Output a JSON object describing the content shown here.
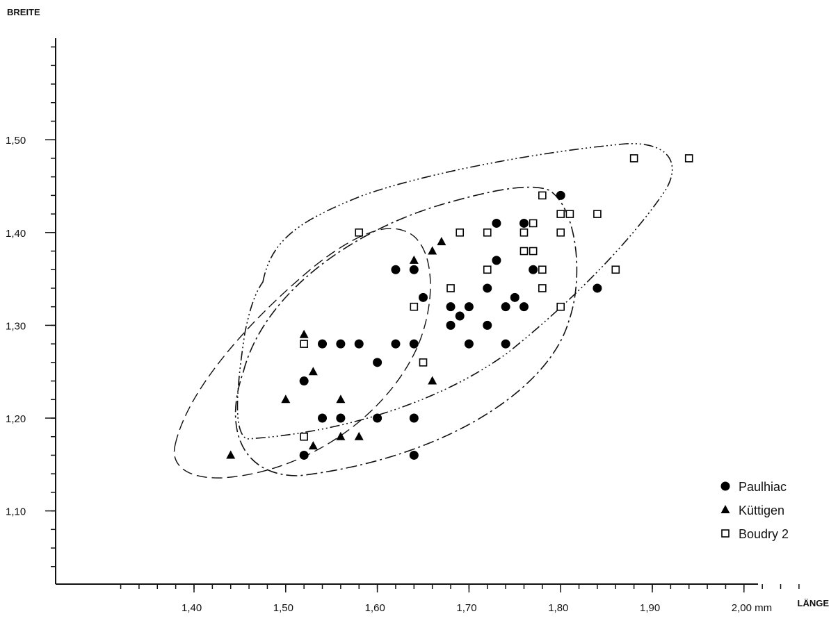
{
  "chart_data": {
    "type": "scatter",
    "title": "",
    "xlabel": "LÄNGE",
    "ylabel": "BREITE",
    "x_unit": "mm",
    "xlim": [
      1.31,
      2.06
    ],
    "ylim": [
      1.03,
      1.6
    ],
    "x_ticks": [
      1.4,
      1.5,
      1.6,
      1.7,
      1.8,
      1.9,
      2.0
    ],
    "x_tick_labels": [
      "1,40",
      "1,50",
      "1,60",
      "1,70",
      "1,80",
      "1,90",
      "2,00 mm"
    ],
    "y_ticks": [
      1.1,
      1.2,
      1.3,
      1.4,
      1.5
    ],
    "y_tick_labels": [
      "1,10",
      "1,20",
      "1,30",
      "1,40",
      "1,50"
    ],
    "grid": false,
    "legend_position": "bottom-right",
    "series": [
      {
        "name": "Paulhiac",
        "marker": "filled-circle",
        "color": "#000000",
        "envelope": "dash-dot",
        "points": [
          [
            1.52,
            1.16
          ],
          [
            1.52,
            1.24
          ],
          [
            1.54,
            1.2
          ],
          [
            1.54,
            1.28
          ],
          [
            1.56,
            1.2
          ],
          [
            1.56,
            1.28
          ],
          [
            1.58,
            1.28
          ],
          [
            1.6,
            1.26
          ],
          [
            1.6,
            1.2
          ],
          [
            1.62,
            1.28
          ],
          [
            1.62,
            1.36
          ],
          [
            1.64,
            1.36
          ],
          [
            1.64,
            1.28
          ],
          [
            1.64,
            1.2
          ],
          [
            1.64,
            1.16
          ],
          [
            1.65,
            1.33
          ],
          [
            1.68,
            1.32
          ],
          [
            1.68,
            1.3
          ],
          [
            1.69,
            1.31
          ],
          [
            1.7,
            1.32
          ],
          [
            1.7,
            1.28
          ],
          [
            1.72,
            1.34
          ],
          [
            1.72,
            1.3
          ],
          [
            1.73,
            1.37
          ],
          [
            1.73,
            1.41
          ],
          [
            1.74,
            1.32
          ],
          [
            1.74,
            1.28
          ],
          [
            1.75,
            1.33
          ],
          [
            1.76,
            1.41
          ],
          [
            1.76,
            1.32
          ],
          [
            1.77,
            1.36
          ],
          [
            1.8,
            1.44
          ],
          [
            1.84,
            1.34
          ]
        ]
      },
      {
        "name": "Küttigen",
        "marker": "filled-triangle",
        "color": "#000000",
        "envelope": "dashed",
        "points": [
          [
            1.44,
            1.16
          ],
          [
            1.5,
            1.22
          ],
          [
            1.52,
            1.29
          ],
          [
            1.53,
            1.25
          ],
          [
            1.53,
            1.17
          ],
          [
            1.56,
            1.22
          ],
          [
            1.56,
            1.18
          ],
          [
            1.58,
            1.18
          ],
          [
            1.64,
            1.37
          ],
          [
            1.66,
            1.38
          ],
          [
            1.67,
            1.39
          ],
          [
            1.66,
            1.24
          ]
        ]
      },
      {
        "name": "Boudry 2",
        "marker": "open-square",
        "color": "#000000",
        "envelope": "dash-dot-dot",
        "points": [
          [
            1.52,
            1.28
          ],
          [
            1.52,
            1.18
          ],
          [
            1.58,
            1.4
          ],
          [
            1.64,
            1.32
          ],
          [
            1.65,
            1.26
          ],
          [
            1.68,
            1.34
          ],
          [
            1.69,
            1.4
          ],
          [
            1.72,
            1.4
          ],
          [
            1.72,
            1.36
          ],
          [
            1.76,
            1.4
          ],
          [
            1.76,
            1.38
          ],
          [
            1.77,
            1.41
          ],
          [
            1.77,
            1.38
          ],
          [
            1.78,
            1.44
          ],
          [
            1.78,
            1.36
          ],
          [
            1.78,
            1.34
          ],
          [
            1.8,
            1.42
          ],
          [
            1.8,
            1.4
          ],
          [
            1.8,
            1.32
          ],
          [
            1.81,
            1.42
          ],
          [
            1.84,
            1.42
          ],
          [
            1.86,
            1.36
          ],
          [
            1.88,
            1.48
          ],
          [
            1.94,
            1.48
          ]
        ]
      }
    ]
  }
}
